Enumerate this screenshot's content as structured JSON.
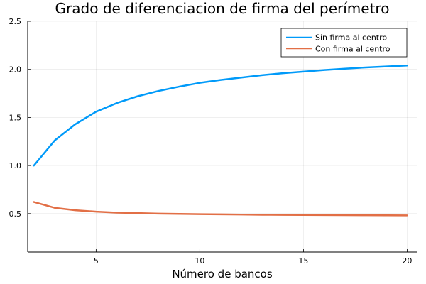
{
  "chart_data": {
    "type": "line",
    "title": "Grado de diferenciacion de firma del perímetro",
    "xlabel": "Número de bancos",
    "ylabel": "",
    "xlim": [
      1.7,
      20.5
    ],
    "ylim": [
      0.1,
      2.5
    ],
    "xticks": [
      5,
      10,
      15,
      20
    ],
    "yticks": [
      0.5,
      1.0,
      1.5,
      2.0,
      2.5
    ],
    "xtick_labels": [
      "5",
      "10",
      "15",
      "20"
    ],
    "ytick_labels": [
      "0.5",
      "1.0",
      "1.5",
      "2.0",
      "2.5"
    ],
    "grid": true,
    "legend_position": "top-right",
    "x": [
      2,
      3,
      4,
      5,
      6,
      7,
      8,
      9,
      10,
      11,
      12,
      13,
      14,
      15,
      16,
      17,
      18,
      19,
      20
    ],
    "series": [
      {
        "name": "Sin firma al centro",
        "color": "#009af9",
        "values": [
          1.0,
          1.26,
          1.43,
          1.56,
          1.65,
          1.72,
          1.775,
          1.82,
          1.86,
          1.89,
          1.915,
          1.94,
          1.96,
          1.977,
          1.993,
          2.007,
          2.02,
          2.03,
          2.04
        ]
      },
      {
        "name": "Con firma al centro",
        "color": "#e26f46",
        "values": [
          0.62,
          0.56,
          0.535,
          0.52,
          0.51,
          0.505,
          0.5,
          0.497,
          0.494,
          0.492,
          0.49,
          0.488,
          0.487,
          0.486,
          0.485,
          0.484,
          0.483,
          0.482,
          0.481
        ]
      }
    ]
  }
}
